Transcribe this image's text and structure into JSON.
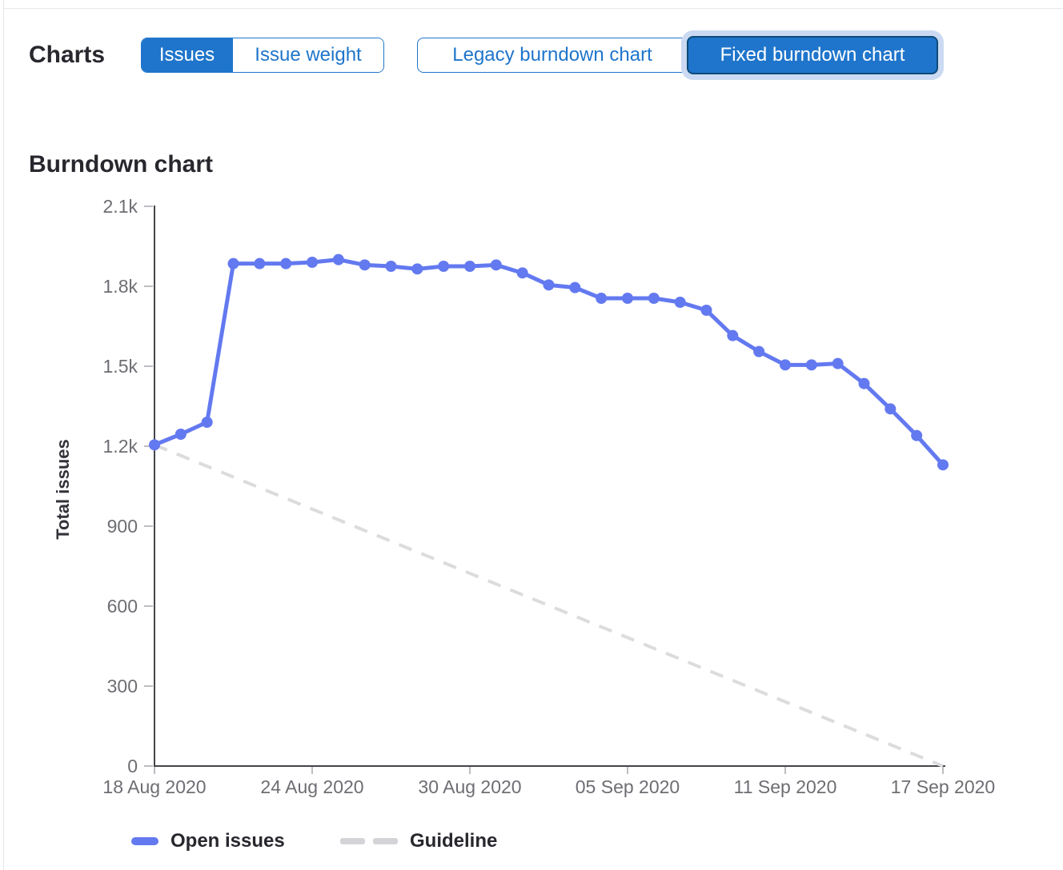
{
  "toolbar": {
    "section_label": "Charts",
    "metric_toggle": [
      {
        "label": "Issues",
        "active": true
      },
      {
        "label": "Issue weight",
        "active": false
      }
    ],
    "chart_version_toggle": [
      {
        "label": "Legacy burndown chart",
        "active": false
      },
      {
        "label": "Fixed burndown chart",
        "active": true
      }
    ]
  },
  "colors": {
    "accent_blue": "#1f75cb",
    "active_button_border": "#0d4a77",
    "focus_halo": "#cbdaf2",
    "open_issues_blue": "#6379f0",
    "guideline_gray": "#dcdcde",
    "legend_dash_gray": "#d4d4d8",
    "axis": "#454449",
    "tick": "#bdbdc2",
    "tick_label": "#6e6d73",
    "text_dark": "#28272d"
  },
  "chart_data": {
    "type": "line",
    "title": "Burndown chart",
    "xlabel": "",
    "ylabel": "Total issues",
    "ylim": [
      0,
      2100
    ],
    "grid": false,
    "legend_position": "bottom",
    "y_tick_values": [
      0,
      300,
      600,
      900,
      1200,
      1500,
      1800,
      2100
    ],
    "y_tick_labels": [
      "0",
      "300",
      "600",
      "900",
      "1.2k",
      "1.5k",
      "1.8k",
      "2.1k"
    ],
    "x": [
      "18 Aug 2020",
      "19 Aug 2020",
      "20 Aug 2020",
      "21 Aug 2020",
      "22 Aug 2020",
      "23 Aug 2020",
      "24 Aug 2020",
      "25 Aug 2020",
      "26 Aug 2020",
      "27 Aug 2020",
      "28 Aug 2020",
      "29 Aug 2020",
      "30 Aug 2020",
      "31 Aug 2020",
      "01 Sep 2020",
      "02 Sep 2020",
      "03 Sep 2020",
      "04 Sep 2020",
      "05 Sep 2020",
      "06 Sep 2020",
      "07 Sep 2020",
      "08 Sep 2020",
      "09 Sep 2020",
      "10 Sep 2020",
      "11 Sep 2020",
      "12 Sep 2020",
      "13 Sep 2020",
      "14 Sep 2020",
      "15 Sep 2020",
      "16 Sep 2020",
      "17 Sep 2020"
    ],
    "x_tick_indices": [
      0,
      6,
      12,
      18,
      24,
      30
    ],
    "series": [
      {
        "name": "Open issues",
        "style": "solid",
        "marker": true,
        "color": "#6379f0",
        "values": [
          1205,
          1245,
          1290,
          1885,
          1885,
          1885,
          1890,
          1900,
          1880,
          1875,
          1865,
          1875,
          1875,
          1880,
          1850,
          1805,
          1795,
          1755,
          1755,
          1755,
          1740,
          1710,
          1615,
          1555,
          1505,
          1505,
          1510,
          1435,
          1340,
          1240,
          1130
        ]
      },
      {
        "name": "Guideline",
        "style": "dashed",
        "marker": false,
        "color": "#dcdcde",
        "x_indices": [
          0,
          30
        ],
        "values": [
          1205,
          0
        ]
      }
    ]
  }
}
